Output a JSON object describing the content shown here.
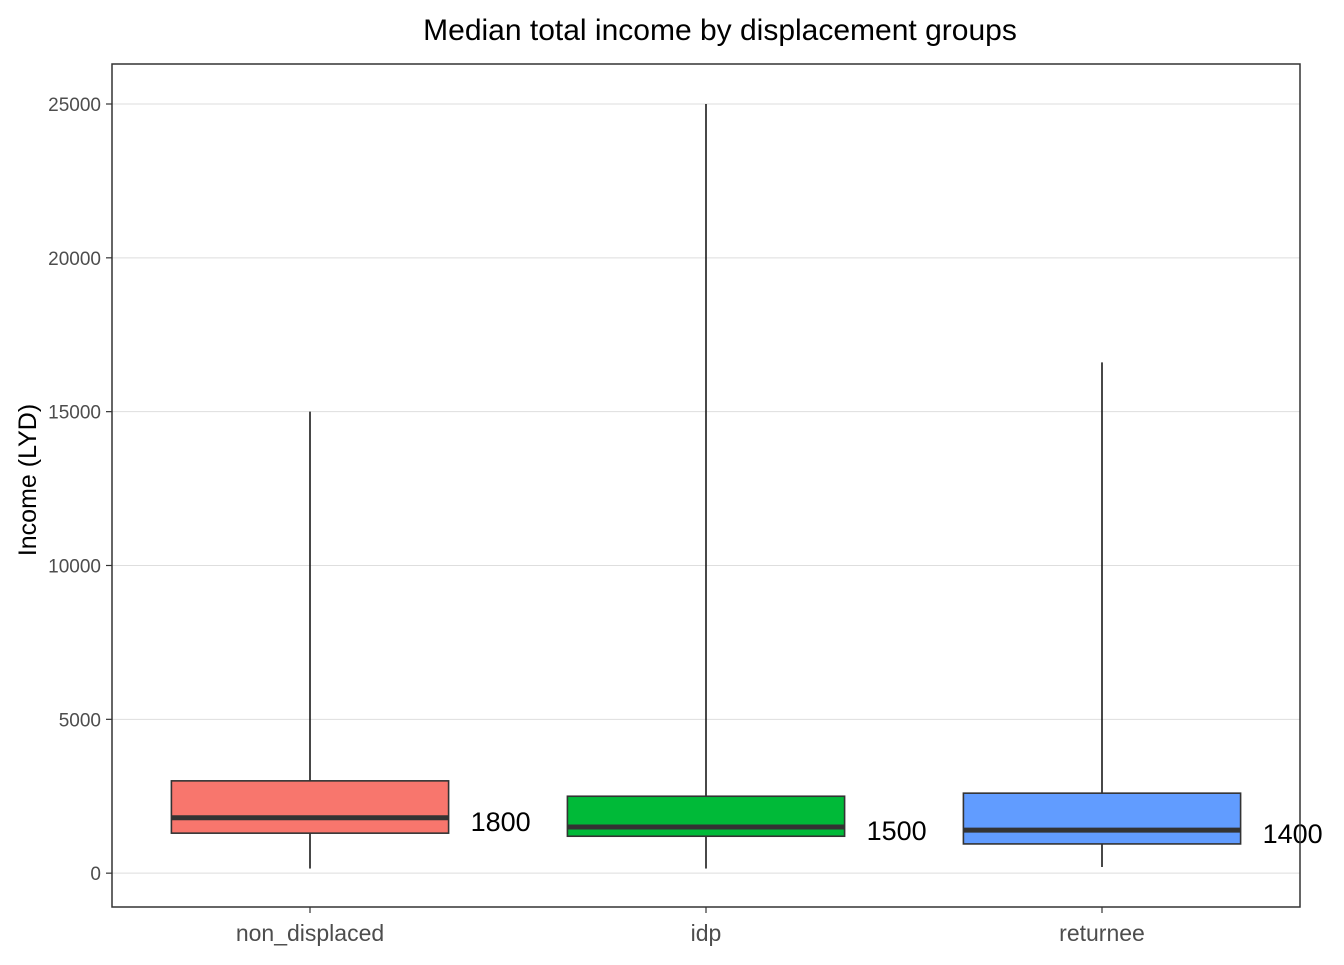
{
  "chart_data": {
    "type": "boxplot",
    "title": "Median total income by displacement groups",
    "xlabel": "",
    "ylabel": "Income (LYD)",
    "ylim": [
      -1100,
      26300
    ],
    "y_ticks": [
      0,
      5000,
      10000,
      15000,
      20000,
      25000
    ],
    "grid": "horizontal",
    "legend": "none",
    "categories": [
      "non_displaced",
      "idp",
      "returnee"
    ],
    "boxes": [
      {
        "category": "non_displaced",
        "whisker_low": 150,
        "q1": 1300,
        "median": 1800,
        "q3": 3000,
        "whisker_high": 15000,
        "median_label": "1800",
        "color": "#F8766D"
      },
      {
        "category": "idp",
        "whisker_low": 150,
        "q1": 1200,
        "median": 1500,
        "q3": 2500,
        "whisker_high": 25000,
        "median_label": "1500",
        "color": "#00BA38"
      },
      {
        "category": "returnee",
        "whisker_low": 200,
        "q1": 950,
        "median": 1400,
        "q3": 2600,
        "whisker_high": 16600,
        "median_label": "1400",
        "color": "#619CFF"
      }
    ]
  }
}
